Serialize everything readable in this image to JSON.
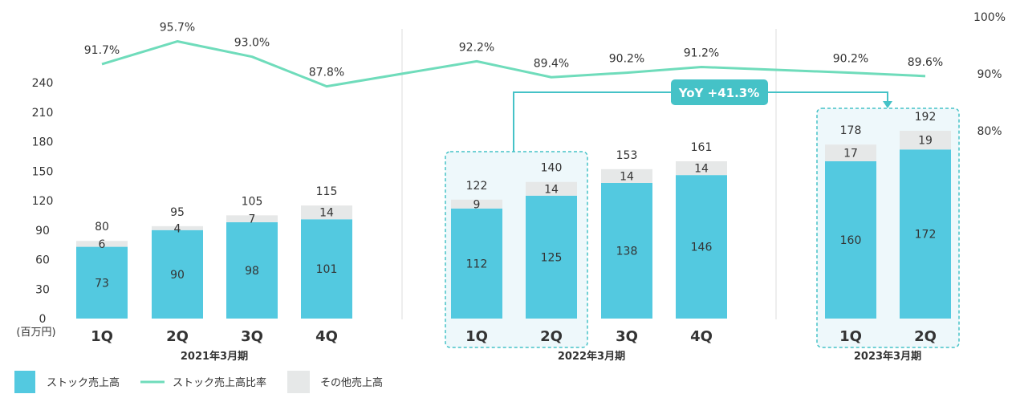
{
  "chart_data": {
    "type": "bar",
    "unit_label": "(百万円)",
    "y_left_ticks": [
      0,
      30,
      60,
      90,
      120,
      150,
      180,
      210,
      240
    ],
    "ylim": [
      0,
      240
    ],
    "y_right_ticks": [
      "80%",
      "90%",
      "100%"
    ],
    "categories": [
      "1Q",
      "2Q",
      "3Q",
      "4Q",
      "1Q",
      "2Q",
      "3Q",
      "4Q",
      "1Q",
      "2Q"
    ],
    "fiscal_years": [
      {
        "label": "2021年3月期",
        "count": 4
      },
      {
        "label": "2022年3月期",
        "count": 4
      },
      {
        "label": "2023年3月期",
        "count": 2
      }
    ],
    "series": [
      {
        "name": "ストック売上高",
        "color": "#53c9e0",
        "values": [
          73,
          90,
          98,
          101,
          112,
          125,
          138,
          146,
          160,
          172
        ]
      },
      {
        "name": "その他売上高",
        "color": "#e6e8e8",
        "values": [
          6,
          4,
          7,
          14,
          9,
          14,
          14,
          14,
          17,
          19
        ]
      },
      {
        "name": "ストック売上高比率",
        "color": "#6fdcbb",
        "type": "line",
        "values": [
          "91.7%",
          "95.7%",
          "93.0%",
          "87.8%",
          "92.2%",
          "89.4%",
          "90.2%",
          "91.2%",
          "90.2%",
          "89.6%"
        ]
      }
    ],
    "totals": [
      80,
      95,
      105,
      115,
      122,
      140,
      153,
      161,
      178,
      192
    ],
    "highlight_indices": [
      4,
      5,
      8,
      9
    ],
    "annotation": "YoY +41.3%",
    "legend": [
      "ストック売上高",
      "ストック売上高比率",
      "その他売上高"
    ],
    "grid": false
  }
}
